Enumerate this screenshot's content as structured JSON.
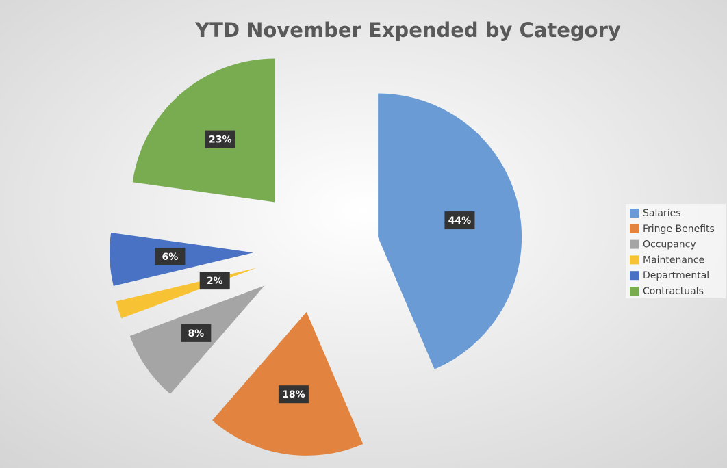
{
  "chart_data": {
    "type": "pie",
    "title": "YTD November Expended by Category",
    "categories": [
      "Salaries",
      "Fringe Benefits",
      "Occupancy",
      "Maintenance",
      "Departmental",
      "Contractuals"
    ],
    "values": [
      44,
      18,
      8,
      2,
      6,
      23
    ],
    "value_labels": [
      "44%",
      "18%",
      "8%",
      "2%",
      "6%",
      "23%"
    ],
    "colors": [
      "#6a9bd4",
      "#e2843f",
      "#a5a5a5",
      "#f7c234",
      "#4a72c4",
      "#79ac51"
    ],
    "legend": "right"
  }
}
